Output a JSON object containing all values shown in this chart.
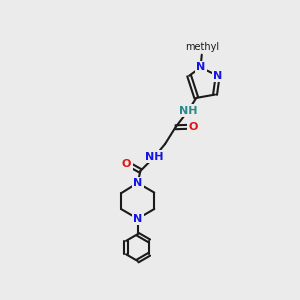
{
  "bg_color": "#ebebeb",
  "bond_color": "#1a1a1a",
  "N_color": "#1414e6",
  "O_color": "#e01414",
  "NH_color": "#2a8888",
  "figsize": [
    3.0,
    3.0
  ],
  "dpi": 100,
  "lw": 1.5,
  "fs": 8.0,
  "fs_sm": 7.0,
  "xlim": [
    0,
    10
  ],
  "ylim": [
    0,
    10
  ]
}
